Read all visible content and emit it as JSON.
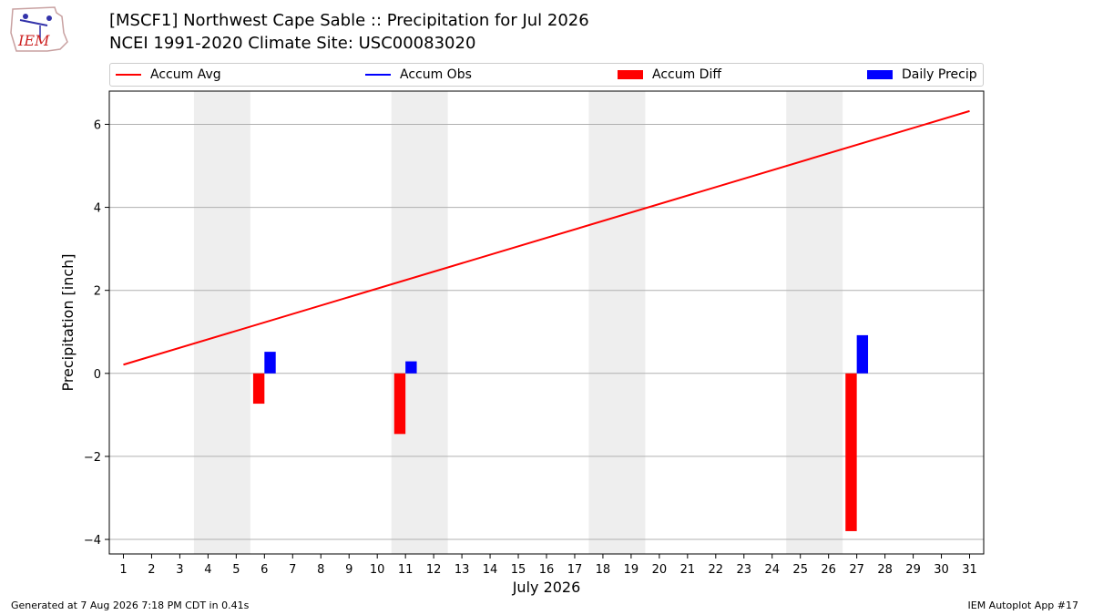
{
  "header": {
    "title_line1": "[MSCF1] Northwest Cape Sable :: Precipitation for Jul 2026",
    "title_line2": "NCEI 1991-2020 Climate Site: USC00083020",
    "logo_text": "IEM"
  },
  "footer": {
    "generated": "Generated at 7 Aug 2026 7:18 PM CDT in 0.41s",
    "app": "IEM Autoplot App #17"
  },
  "legend": [
    {
      "label": "Accum Avg",
      "color": "#ff0000",
      "kind": "line"
    },
    {
      "label": "Accum Obs",
      "color": "#0000ff",
      "kind": "line"
    },
    {
      "label": "Accum Diff",
      "color": "#ff0000",
      "kind": "box"
    },
    {
      "label": "Daily Precip",
      "color": "#0000ff",
      "kind": "box"
    }
  ],
  "chart_data": {
    "type": "bar",
    "xlabel": "July 2026",
    "ylabel": "Precipitation [inch]",
    "xlim": [
      0.5,
      31.5
    ],
    "ylim": [
      -4.35,
      6.8
    ],
    "y_ticks": [
      -4,
      -2,
      0,
      2,
      4,
      6
    ],
    "y_tick_labels": [
      "−4",
      "−2",
      "0",
      "2",
      "4",
      "6"
    ],
    "x_ticks": [
      1,
      2,
      3,
      4,
      5,
      6,
      7,
      8,
      9,
      10,
      11,
      12,
      13,
      14,
      15,
      16,
      17,
      18,
      19,
      20,
      21,
      22,
      23,
      24,
      25,
      26,
      27,
      28,
      29,
      30,
      31
    ],
    "weekend_spans": [
      [
        3.5,
        5.5
      ],
      [
        10.5,
        12.5
      ],
      [
        17.5,
        19.5
      ],
      [
        24.5,
        26.5
      ]
    ],
    "grid": "y",
    "accum_avg": {
      "x": [
        1,
        31
      ],
      "y": [
        0.21,
        6.32
      ]
    },
    "accum_diff": {
      "x": [
        6,
        11,
        27
      ],
      "y": [
        -0.73,
        -1.46,
        -3.8
      ]
    },
    "daily_precip": {
      "x": [
        6,
        11,
        27
      ],
      "y": [
        0.52,
        0.29,
        0.92
      ]
    },
    "colors": {
      "avg": "#ff0000",
      "obs": "#0000ff",
      "diff": "#ff0000",
      "daily": "#0000ff",
      "weekend": "#eeeeee",
      "grid": "#b0b0b0"
    }
  }
}
